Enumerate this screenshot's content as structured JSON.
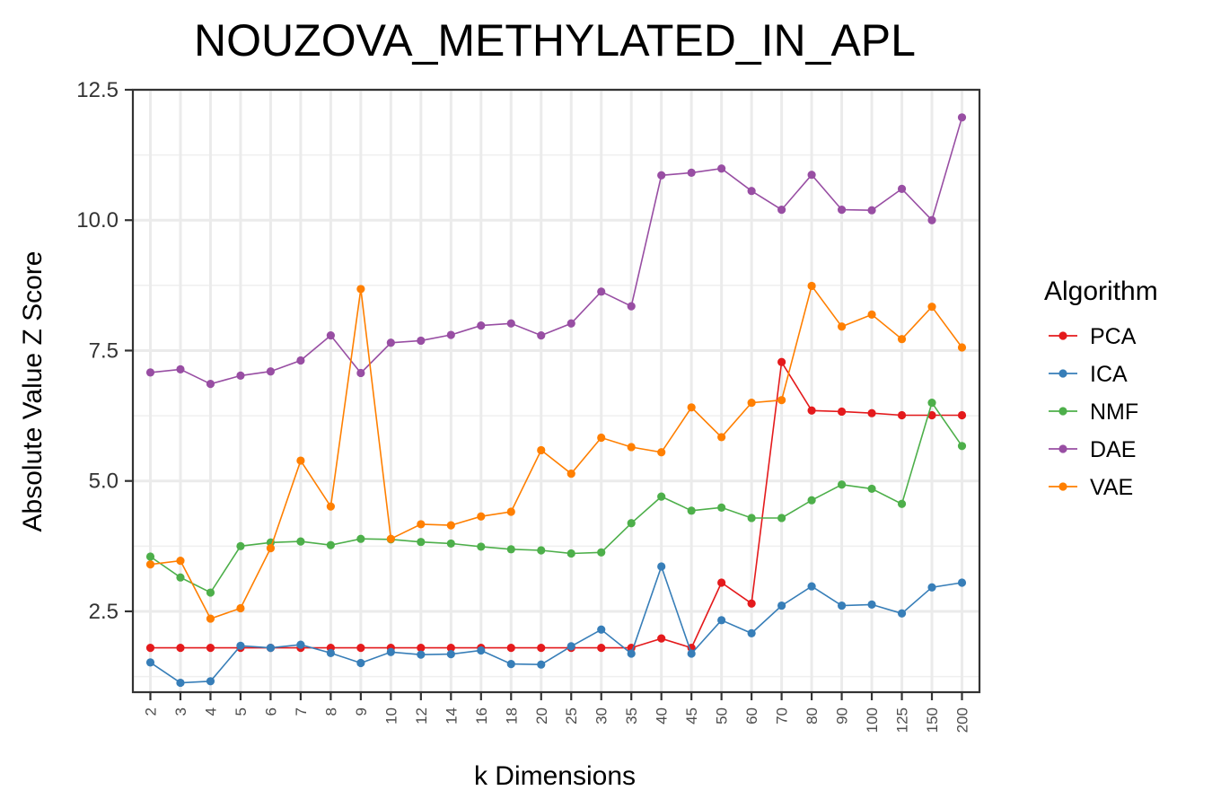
{
  "chart_data": {
    "type": "line",
    "title": "NOUZOVA_METHYLATED_IN_APL",
    "xlabel": "k Dimensions",
    "ylabel": "Absolute Value Z Score",
    "x_categories": [
      "2",
      "3",
      "4",
      "5",
      "6",
      "7",
      "8",
      "9",
      "10",
      "12",
      "14",
      "16",
      "18",
      "20",
      "25",
      "30",
      "35",
      "40",
      "45",
      "50",
      "60",
      "70",
      "80",
      "90",
      "100",
      "125",
      "150",
      "200"
    ],
    "y_ticks": [
      "2.5",
      "5.0",
      "7.5",
      "10.0",
      "12.5"
    ],
    "y_tick_values": [
      2.5,
      5.0,
      7.5,
      10.0,
      12.5
    ],
    "ylim": [
      0.95,
      12.5
    ],
    "grid": true,
    "legend_placement": "right",
    "legend_title": "Algorithm",
    "series": [
      {
        "name": "PCA",
        "color": "#E41A1C",
        "values": [
          1.8,
          1.8,
          1.8,
          1.8,
          1.8,
          1.8,
          1.8,
          1.8,
          1.8,
          1.8,
          1.8,
          1.8,
          1.8,
          1.8,
          1.8,
          1.8,
          1.8,
          1.98,
          1.8,
          3.05,
          2.65,
          7.28,
          6.35,
          6.33,
          6.3,
          6.26,
          6.26,
          6.26
        ]
      },
      {
        "name": "ICA",
        "color": "#377EB8",
        "values": [
          1.52,
          1.13,
          1.16,
          1.84,
          1.8,
          1.86,
          1.7,
          1.51,
          1.72,
          1.67,
          1.68,
          1.75,
          1.49,
          1.48,
          1.83,
          2.15,
          1.69,
          3.36,
          1.69,
          2.33,
          2.08,
          2.61,
          2.98,
          2.61,
          2.63,
          2.46,
          2.96,
          3.05
        ]
      },
      {
        "name": "NMF",
        "color": "#4DAF4A",
        "values": [
          3.55,
          3.15,
          2.86,
          3.75,
          3.82,
          3.84,
          3.77,
          3.89,
          3.88,
          3.83,
          3.8,
          3.74,
          3.69,
          3.67,
          3.61,
          3.63,
          4.19,
          4.7,
          4.43,
          4.49,
          4.29,
          4.29,
          4.63,
          4.93,
          4.85,
          4.56,
          6.5,
          5.67
        ]
      },
      {
        "name": "DAE",
        "color": "#984EA3",
        "values": [
          7.08,
          7.14,
          6.86,
          7.02,
          7.1,
          7.31,
          7.79,
          7.07,
          7.65,
          7.69,
          7.8,
          7.98,
          8.02,
          7.79,
          8.02,
          8.63,
          8.35,
          10.86,
          10.91,
          10.99,
          10.56,
          10.2,
          10.87,
          10.2,
          10.19,
          10.6,
          10.0,
          11.97
        ]
      },
      {
        "name": "VAE",
        "color": "#FF7F00",
        "values": [
          3.4,
          3.47,
          2.36,
          2.56,
          3.71,
          5.39,
          4.51,
          8.68,
          3.89,
          4.17,
          4.15,
          4.32,
          4.41,
          5.59,
          5.14,
          5.83,
          5.65,
          5.55,
          6.41,
          5.84,
          6.5,
          6.55,
          8.74,
          7.96,
          8.19,
          7.72,
          8.34,
          7.56
        ]
      }
    ]
  }
}
